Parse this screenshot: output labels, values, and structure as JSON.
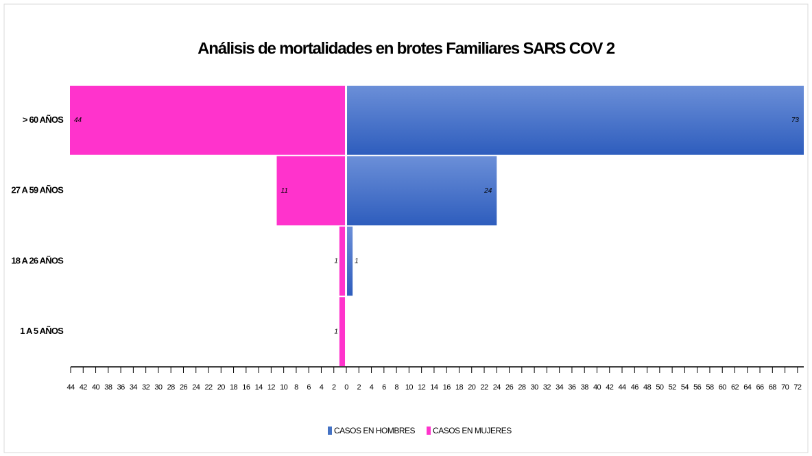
{
  "chart_data": {
    "type": "pyramid",
    "title": "Análisis de mortalidades en brotes Familiares SARS COV 2",
    "categories": [
      "> 60 AÑOS",
      "27 A 59 AÑOS",
      "18 A 26 AÑOS",
      "1 A 5 AÑOS"
    ],
    "series": [
      {
        "name": "CASOS EN HOMBRES",
        "color": "#4472c4",
        "values": [
          73,
          24,
          1,
          null
        ]
      },
      {
        "name": "CASOS EN MUJERES",
        "color": "#ff33cc",
        "values": [
          44,
          11,
          1,
          1
        ]
      }
    ],
    "xlim": [
      -44,
      73
    ],
    "xticks": [
      {
        "value": -44,
        "label": "44"
      },
      {
        "value": -42,
        "label": "42"
      },
      {
        "value": -40,
        "label": "40"
      },
      {
        "value": -38,
        "label": "38"
      },
      {
        "value": -36,
        "label": "36"
      },
      {
        "value": -34,
        "label": "34"
      },
      {
        "value": -32,
        "label": "32"
      },
      {
        "value": -30,
        "label": "30"
      },
      {
        "value": -28,
        "label": "28"
      },
      {
        "value": -26,
        "label": "26"
      },
      {
        "value": -24,
        "label": "24"
      },
      {
        "value": -22,
        "label": "22"
      },
      {
        "value": -20,
        "label": "20"
      },
      {
        "value": -18,
        "label": "18"
      },
      {
        "value": -16,
        "label": "16"
      },
      {
        "value": -14,
        "label": "14"
      },
      {
        "value": -12,
        "label": "12"
      },
      {
        "value": -10,
        "label": "10"
      },
      {
        "value": -8,
        "label": "8"
      },
      {
        "value": -6,
        "label": "6"
      },
      {
        "value": -4,
        "label": "4"
      },
      {
        "value": -2,
        "label": "2"
      },
      0,
      2,
      4,
      6,
      8,
      10,
      12,
      14,
      16,
      18,
      20,
      22,
      24,
      26,
      28,
      30,
      32,
      34,
      36,
      38,
      40,
      42,
      44,
      46,
      48,
      50,
      52,
      54,
      56,
      58,
      60,
      62,
      64,
      66,
      68,
      70,
      72
    ],
    "legend": "bottom"
  }
}
